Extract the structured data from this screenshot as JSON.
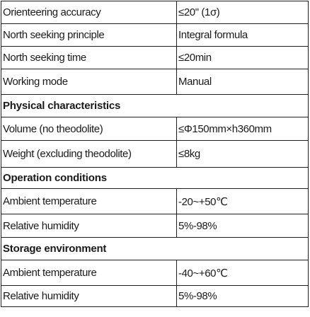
{
  "table": {
    "rows": [
      {
        "type": "pair",
        "label": "Orienteering accuracy",
        "value": "≤20\" (1σ)"
      },
      {
        "type": "pair",
        "label": "North seeking principle",
        "value": "Integral formula"
      },
      {
        "type": "pair",
        "label": "North seeking time",
        "value": "≤20min"
      },
      {
        "type": "pair",
        "label": "Working mode",
        "value": "Manual"
      },
      {
        "type": "section",
        "title": "Physical characteristics"
      },
      {
        "type": "pair",
        "label": "Volume (no theodolite)",
        "value": "≤Φ150mm×h360mm"
      },
      {
        "type": "pair",
        "label": "Weight (excluding theodolite)",
        "value": "≤8kg"
      },
      {
        "type": "section",
        "title": "Operation conditions"
      },
      {
        "type": "pair",
        "label": "Ambient temperature",
        "value": "-20~+50℃"
      },
      {
        "type": "pair",
        "label": "Relative humidity",
        "value": "5%-98%"
      },
      {
        "type": "section",
        "title": "Storage environment"
      },
      {
        "type": "pair",
        "label": "Ambient temperature",
        "value": "-40~+60℃"
      },
      {
        "type": "pair",
        "label": "Relative humidity",
        "value": "5%-98%"
      }
    ]
  }
}
